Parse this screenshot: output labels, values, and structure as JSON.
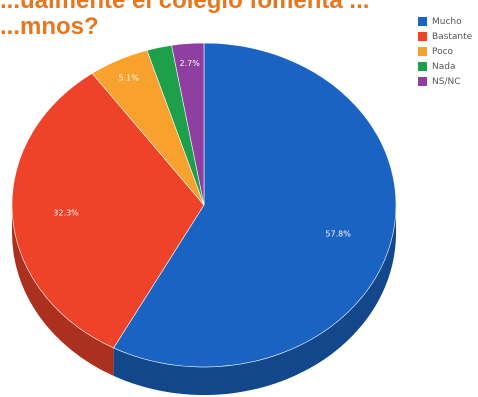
{
  "title_lines": [
    "...ualmente el colegio fomenta ...",
    "...mnos?"
  ],
  "chart_data": {
    "type": "pie",
    "style": "3d",
    "categories": [
      "Mucho",
      "Bastante",
      "Poco",
      "Nada",
      "NS/NC"
    ],
    "values": [
      57.8,
      32.3,
      5.1,
      2.1,
      2.7
    ],
    "value_labels": [
      "57.8%",
      "32.3%",
      "5.1%",
      "",
      "2.7%"
    ],
    "colors": [
      "#1a63c3",
      "#ee4229",
      "#f8a12d",
      "#1ea04a",
      "#8e3fa0"
    ],
    "legend_position": "top-right"
  }
}
